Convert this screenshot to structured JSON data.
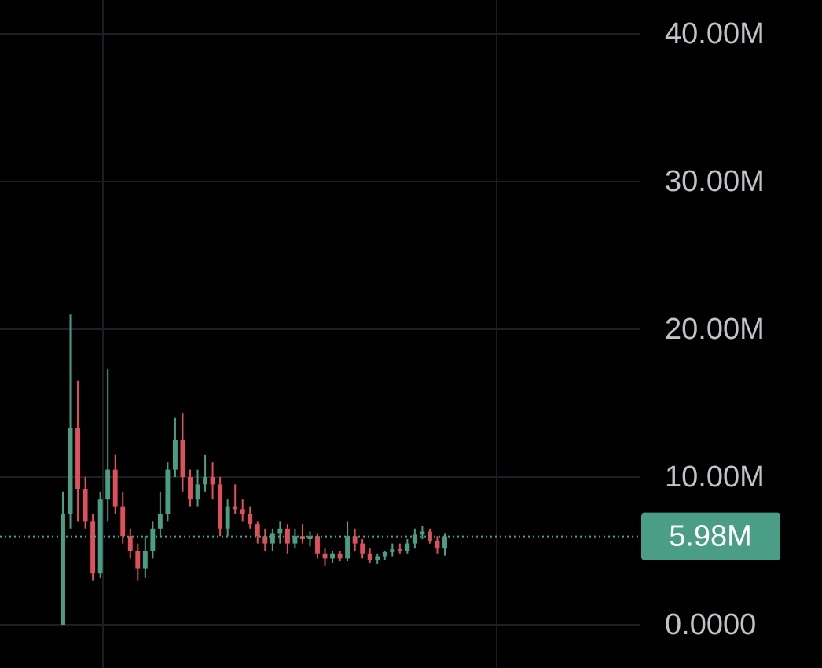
{
  "chart_data": {
    "type": "candlestick",
    "open": [
      0,
      7.5,
      13.3,
      9.2,
      7,
      3.5,
      8.5,
      10.5,
      8,
      6,
      5,
      3.8,
      5,
      6.5,
      7.5,
      10.5,
      12.5,
      10,
      8.5,
      9.5,
      10,
      9.5,
      6.5,
      8,
      7.8,
      7.5,
      6.8,
      6,
      5.5,
      6.2,
      6.5,
      5.5,
      6,
      5.8,
      6,
      4.8,
      4.5,
      4.8,
      4.5,
      6,
      5.5,
      4.8,
      4.4,
      4.6,
      4.9,
      5.1,
      5,
      5.5,
      6.1,
      6.3,
      5.7,
      5.2
    ],
    "high": [
      9,
      21,
      16.5,
      10,
      7.5,
      9,
      17.3,
      11.5,
      9,
      6.5,
      5.5,
      6,
      7,
      9,
      11,
      14,
      14.3,
      10.5,
      10.5,
      11.5,
      11,
      10,
      8.5,
      9.5,
      8.5,
      8,
      7,
      6.5,
      6.5,
      7,
      6.8,
      6.5,
      6.8,
      6.3,
      6.2,
      5.2,
      5,
      5,
      7,
      6.5,
      5.8,
      5.2,
      4.8,
      5,
      5.5,
      5.5,
      5.8,
      6.5,
      6.7,
      6.5,
      6,
      6.2
    ],
    "low": [
      0,
      6.5,
      7,
      6.5,
      3,
      3.2,
      7,
      7.5,
      5.5,
      4.5,
      3,
      3.2,
      4.5,
      6,
      7,
      10,
      9,
      8,
      8,
      9,
      8.5,
      6,
      6,
      7.5,
      7,
      6.5,
      5.5,
      5,
      5,
      5.5,
      4.8,
      5.2,
      5.5,
      5.3,
      4.5,
      4,
      4.2,
      4.3,
      4.3,
      5,
      4.5,
      4.2,
      4.1,
      4.4,
      4.6,
      4.8,
      4.8,
      5.2,
      5.8,
      5.5,
      4.8,
      4.7
    ],
    "close": [
      7.5,
      13.3,
      9.2,
      7,
      3.5,
      8.5,
      10.5,
      8,
      6,
      5,
      3.8,
      5,
      6.5,
      7.5,
      10.5,
      12.5,
      10,
      8.5,
      9.5,
      10,
      9.5,
      6.5,
      8,
      7.8,
      7.5,
      6.8,
      6,
      5.5,
      6.2,
      6.5,
      5.5,
      6,
      5.8,
      6,
      4.8,
      4.5,
      4.8,
      4.5,
      6,
      5.5,
      4.8,
      4.4,
      4.6,
      4.9,
      5.1,
      5,
      5.5,
      6.1,
      6.3,
      5.7,
      5.2,
      5.98
    ],
    "up_color": "#4a9e85",
    "down_color": "#e0505a",
    "ylim": [
      0,
      40
    ],
    "yticks": [
      {
        "value": 0,
        "label": "0.0000"
      },
      {
        "value": 10,
        "label": "10.00M"
      },
      {
        "value": 20,
        "label": "20.00M"
      },
      {
        "value": 30,
        "label": "30.00M"
      },
      {
        "value": 40,
        "label": "40.00M"
      }
    ],
    "grid": true,
    "last": {
      "value": 5.98,
      "label": "5.98M"
    }
  }
}
